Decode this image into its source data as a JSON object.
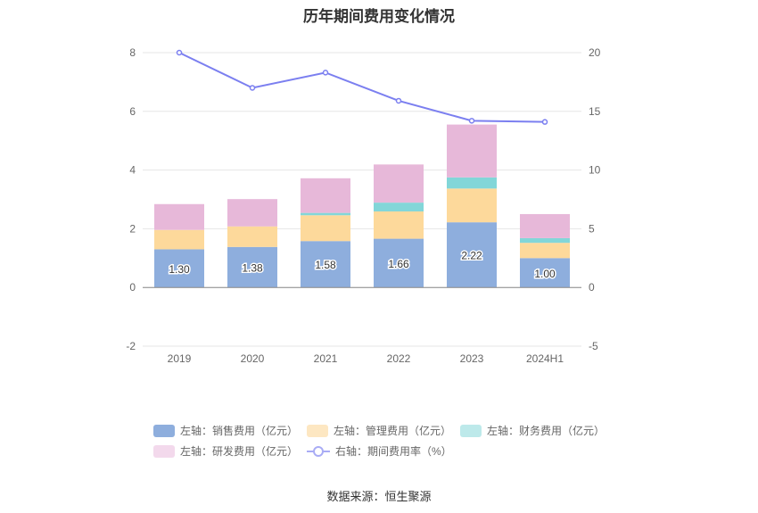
{
  "chart_data": {
    "type": "bar",
    "title": "历年期间费用变化情况",
    "categories": [
      "2019",
      "2020",
      "2021",
      "2022",
      "2023",
      "2024H1"
    ],
    "stacked": true,
    "left_axis": {
      "ylim": [
        -2,
        8
      ],
      "ticks": [
        "-2",
        "0",
        "2",
        "4",
        "6",
        "8"
      ]
    },
    "right_axis": {
      "ylim": [
        -5,
        20
      ],
      "ticks": [
        "-5",
        "0",
        "5",
        "10",
        "15",
        "20"
      ]
    },
    "series": [
      {
        "name": "左轴：销售费用（亿元）",
        "type": "bar",
        "axis": "left",
        "color": "#8eaedd",
        "values": [
          1.3,
          1.38,
          1.58,
          1.66,
          2.22,
          1.0
        ],
        "labels": [
          "1.30",
          "1.38",
          "1.58",
          "1.66",
          "2.22",
          "1.00"
        ]
      },
      {
        "name": "左轴：管理费用（亿元）",
        "type": "bar",
        "axis": "left",
        "color": "#fdd99b",
        "values": [
          0.66,
          0.7,
          0.88,
          0.93,
          1.15,
          0.52
        ]
      },
      {
        "name": "左轴：财务费用（亿元）",
        "type": "bar",
        "axis": "left",
        "color": "#82d6d8",
        "values": [
          0.0,
          0.0,
          0.08,
          0.3,
          0.38,
          0.16
        ]
      },
      {
        "name": "左轴：研发费用（亿元）",
        "type": "bar",
        "axis": "left",
        "color": "#e7b8d9",
        "values": [
          0.88,
          0.93,
          1.18,
          1.3,
          1.8,
          0.82
        ]
      },
      {
        "name": "右轴：期间费用率（%）",
        "type": "line",
        "axis": "right",
        "color": "#7b7ff0",
        "values": [
          20.0,
          17.0,
          18.3,
          15.9,
          14.2,
          14.1
        ]
      }
    ],
    "grid": true,
    "legend_position": "bottom"
  },
  "source_text": "数据来源：恒生聚源"
}
